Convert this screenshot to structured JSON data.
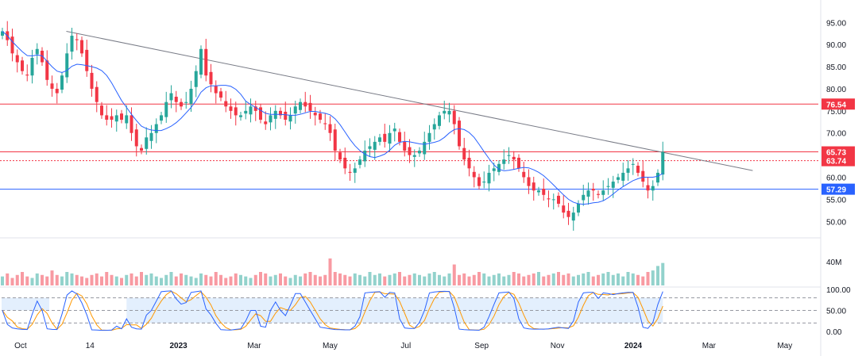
{
  "chart_data": {
    "type": "candlestick",
    "price_axis": {
      "ticks": [
        "95.00",
        "90.00",
        "85.00",
        "80.00",
        "75.00",
        "70.00",
        "65.00",
        "60.00",
        "55.00",
        "50.00"
      ],
      "ylim": [
        47,
        99
      ]
    },
    "volume_axis": {
      "tick": "40M"
    },
    "stoch_axis": {
      "ticks": [
        "100.00",
        "50.00",
        "0.00"
      ],
      "overbought": 80,
      "oversold": 20,
      "mid": 50
    },
    "x_axis": {
      "labels": [
        "Oct",
        "14",
        "2023",
        "Mar",
        "May",
        "Jul",
        "Sep",
        "Nov",
        "2024",
        "Mar",
        "May"
      ],
      "label_positions": [
        3,
        14,
        28,
        40,
        52,
        64,
        76,
        88,
        100,
        112,
        124
      ]
    },
    "levels": [
      {
        "name": "resistance-76",
        "value": 76.54,
        "label": "76.54",
        "color": "#f23645",
        "style": "solid"
      },
      {
        "name": "last-price",
        "value": 65.73,
        "label": "65.73",
        "color": "#f23645",
        "style": "solid"
      },
      {
        "name": "prev-close",
        "value": 63.74,
        "label": "63.74",
        "color": "#f23645",
        "style": "dotted"
      },
      {
        "name": "support-57",
        "value": 57.29,
        "label": "57.29",
        "color": "#2962ff",
        "style": "solid"
      }
    ],
    "trendline": {
      "x": [
        10,
        116
      ],
      "y": [
        93,
        61.5
      ],
      "color": "#787b86"
    },
    "ma_color": "#2962ff",
    "up_color": "#26a69a",
    "down_color": "#f23645",
    "stoch_k_color": "#2962ff",
    "stoch_d_color": "#ff9800",
    "stoch_band_color": "#e3effd",
    "closes": [
      93,
      91,
      88,
      86,
      84,
      83,
      87,
      89,
      86,
      82,
      80,
      79,
      83,
      88,
      92,
      91,
      88,
      84,
      80,
      77,
      74,
      73,
      73,
      74,
      73,
      74,
      70,
      67,
      66,
      69,
      70,
      72,
      74,
      77,
      79,
      77,
      76,
      77,
      80,
      84,
      89,
      83,
      81,
      79,
      78,
      76,
      75,
      74,
      74,
      75,
      76,
      75,
      73,
      72,
      74,
      75,
      74,
      73,
      74,
      76,
      77,
      76,
      75,
      74,
      73,
      72,
      70,
      66,
      64,
      62,
      61,
      62,
      64,
      66,
      67,
      68,
      69,
      68,
      70,
      71,
      68,
      66,
      65,
      65,
      66,
      68,
      70,
      72,
      74,
      75,
      75,
      72,
      67,
      64,
      62,
      60,
      58,
      59,
      61,
      62,
      63,
      64,
      65,
      64,
      62,
      60,
      58,
      57,
      57,
      56,
      55,
      55,
      54,
      52,
      51,
      52,
      54,
      56,
      57,
      57,
      56,
      57,
      58,
      59,
      60,
      61,
      62,
      63,
      61,
      59,
      57,
      58,
      61,
      65.73
    ],
    "volumes": [
      6,
      8,
      5,
      7,
      9,
      6,
      5,
      8,
      7,
      6,
      10,
      7,
      6,
      9,
      8,
      7,
      6,
      5,
      7,
      8,
      6,
      9,
      7,
      6,
      5,
      7,
      8,
      6,
      9,
      7,
      8,
      6,
      5,
      7,
      9,
      6,
      8,
      7,
      6,
      5,
      8,
      7,
      6,
      9,
      7,
      5,
      6,
      8,
      7,
      6,
      5,
      7,
      9,
      8,
      6,
      7,
      8,
      6,
      5,
      7,
      6,
      8,
      9,
      7,
      6,
      7,
      18,
      9,
      8,
      7,
      6,
      8,
      7,
      6,
      9,
      7,
      8,
      6,
      7,
      8,
      9,
      6,
      7,
      8,
      7,
      6,
      8,
      9,
      7,
      6,
      8,
      14,
      7,
      8,
      6,
      7,
      9,
      8,
      6,
      7,
      8,
      6,
      7,
      9,
      8,
      6,
      7,
      8,
      9,
      6,
      7,
      8,
      9,
      7,
      8,
      6,
      7,
      8,
      9,
      6,
      7,
      8,
      9,
      7,
      8,
      6,
      9,
      8,
      7,
      6,
      9,
      10,
      13,
      15
    ]
  }
}
